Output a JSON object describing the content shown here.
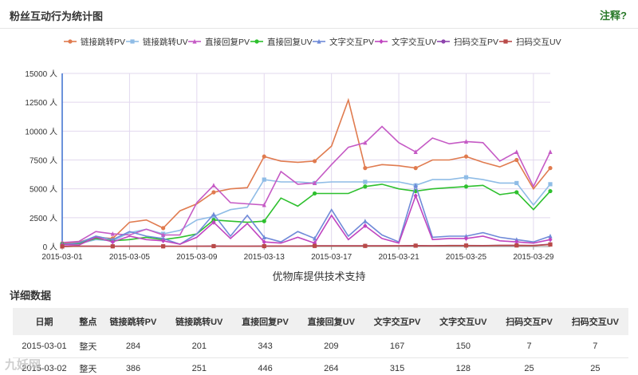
{
  "header": {
    "title": "粉丝互动行为统计图",
    "note_label": "注释?"
  },
  "chart_data": {
    "type": "line",
    "x": [
      "2015-03-01",
      "2015-03-02",
      "2015-03-03",
      "2015-03-04",
      "2015-03-05",
      "2015-03-06",
      "2015-03-07",
      "2015-03-08",
      "2015-03-09",
      "2015-03-10",
      "2015-03-11",
      "2015-03-12",
      "2015-03-13",
      "2015-03-14",
      "2015-03-15",
      "2015-03-16",
      "2015-03-17",
      "2015-03-18",
      "2015-03-19",
      "2015-03-20",
      "2015-03-21",
      "2015-03-22",
      "2015-03-23",
      "2015-03-24",
      "2015-03-25",
      "2015-03-26",
      "2015-03-27",
      "2015-03-28",
      "2015-03-29",
      "2015-03-30"
    ],
    "xticks": [
      "2015-03-01",
      "2015-03-05",
      "2015-03-09",
      "2015-03-13",
      "2015-03-17",
      "2015-03-21",
      "2015-03-25",
      "2015-03-29"
    ],
    "yticks": [
      "0 人",
      "2500 人",
      "5000 人",
      "7500 人",
      "10000 人",
      "12500 人",
      "15000 人"
    ],
    "ylim": [
      0,
      15000
    ],
    "series": [
      {
        "name": "链接跳转PV",
        "color": "#e07b4f",
        "marker": "circle",
        "values": [
          284,
          386,
          800,
          700,
          2100,
          2300,
          1600,
          3100,
          3700,
          4700,
          5000,
          5100,
          7800,
          7400,
          7300,
          7400,
          8700,
          12700,
          6800,
          7100,
          7000,
          6800,
          7500,
          7500,
          7800,
          7300,
          6900,
          7500,
          5000,
          6800
        ]
      },
      {
        "name": "链接跳转UV",
        "color": "#8fbce6",
        "marker": "square",
        "values": [
          201,
          251,
          600,
          500,
          1200,
          1500,
          1100,
          1400,
          2300,
          2600,
          3200,
          3400,
          5800,
          5600,
          5600,
          5500,
          5600,
          5600,
          5600,
          5600,
          5600,
          5300,
          5800,
          5800,
          6000,
          5800,
          5500,
          5500,
          3600,
          5400
        ]
      },
      {
        "name": "直接回复PV",
        "color": "#c55ac5",
        "marker": "triangle",
        "values": [
          343,
          446,
          1300,
          1100,
          1000,
          1500,
          1000,
          1000,
          3800,
          5300,
          3800,
          3700,
          3600,
          6500,
          5400,
          5500,
          7100,
          8600,
          9000,
          10400,
          9000,
          8200,
          9400,
          8900,
          9100,
          9000,
          7400,
          8200,
          5200,
          8200
        ]
      },
      {
        "name": "直接回复UV",
        "color": "#2ec02e",
        "marker": "circle",
        "values": [
          209,
          264,
          700,
          500,
          600,
          800,
          600,
          800,
          1100,
          2300,
          2200,
          2100,
          2200,
          4200,
          3500,
          4600,
          4600,
          4600,
          5200,
          5400,
          5000,
          4800,
          5000,
          5100,
          5200,
          5300,
          4500,
          4700,
          3200,
          4800
        ]
      },
      {
        "name": "文字交互PV",
        "color": "#6f8ad8",
        "marker": "triangle",
        "values": [
          167,
          315,
          900,
          600,
          1300,
          900,
          700,
          200,
          1100,
          2800,
          900,
          2700,
          800,
          400,
          1300,
          700,
          3200,
          900,
          2200,
          1000,
          400,
          5300,
          800,
          900,
          900,
          1200,
          800,
          600,
          400,
          900
        ]
      },
      {
        "name": "文字交互UV",
        "color": "#c045c0",
        "marker": "diamond",
        "values": [
          150,
          128,
          800,
          400,
          900,
          600,
          500,
          200,
          800,
          2100,
          700,
          2000,
          400,
          300,
          800,
          300,
          2700,
          600,
          1800,
          700,
          300,
          4400,
          600,
          700,
          700,
          900,
          500,
          400,
          300,
          600
        ]
      },
      {
        "name": "扫码交互PV",
        "color": "#8e44ad",
        "marker": "circle",
        "values": [
          7,
          25,
          30,
          20,
          30,
          30,
          25,
          20,
          30,
          40,
          30,
          30,
          40,
          50,
          40,
          60,
          60,
          60,
          60,
          60,
          70,
          80,
          70,
          90,
          90,
          80,
          100,
          100,
          90,
          200
        ]
      },
      {
        "name": "扫码交互UV",
        "color": "#b94a48",
        "marker": "square",
        "values": [
          7,
          25,
          25,
          20,
          25,
          25,
          20,
          20,
          25,
          35,
          25,
          25,
          35,
          45,
          35,
          55,
          55,
          55,
          55,
          55,
          65,
          75,
          65,
          85,
          85,
          75,
          95,
          95,
          85,
          180
        ]
      }
    ]
  },
  "chart_footer": "优物库提供技术支持",
  "details": {
    "title": "详细数据",
    "columns": [
      "日期",
      "整点",
      "链接跳转PV",
      "链接跳转UV",
      "直接回复PV",
      "直接回复UV",
      "文字交互PV",
      "文字交互UV",
      "扫码交互PV",
      "扫码交互UV"
    ],
    "rows": [
      [
        "2015-03-01",
        "整天",
        "284",
        "201",
        "343",
        "209",
        "167",
        "150",
        "7",
        "7"
      ],
      [
        "2015-03-02",
        "整天",
        "386",
        "251",
        "446",
        "264",
        "315",
        "128",
        "25",
        "25"
      ]
    ]
  },
  "watermark": "九妖网"
}
